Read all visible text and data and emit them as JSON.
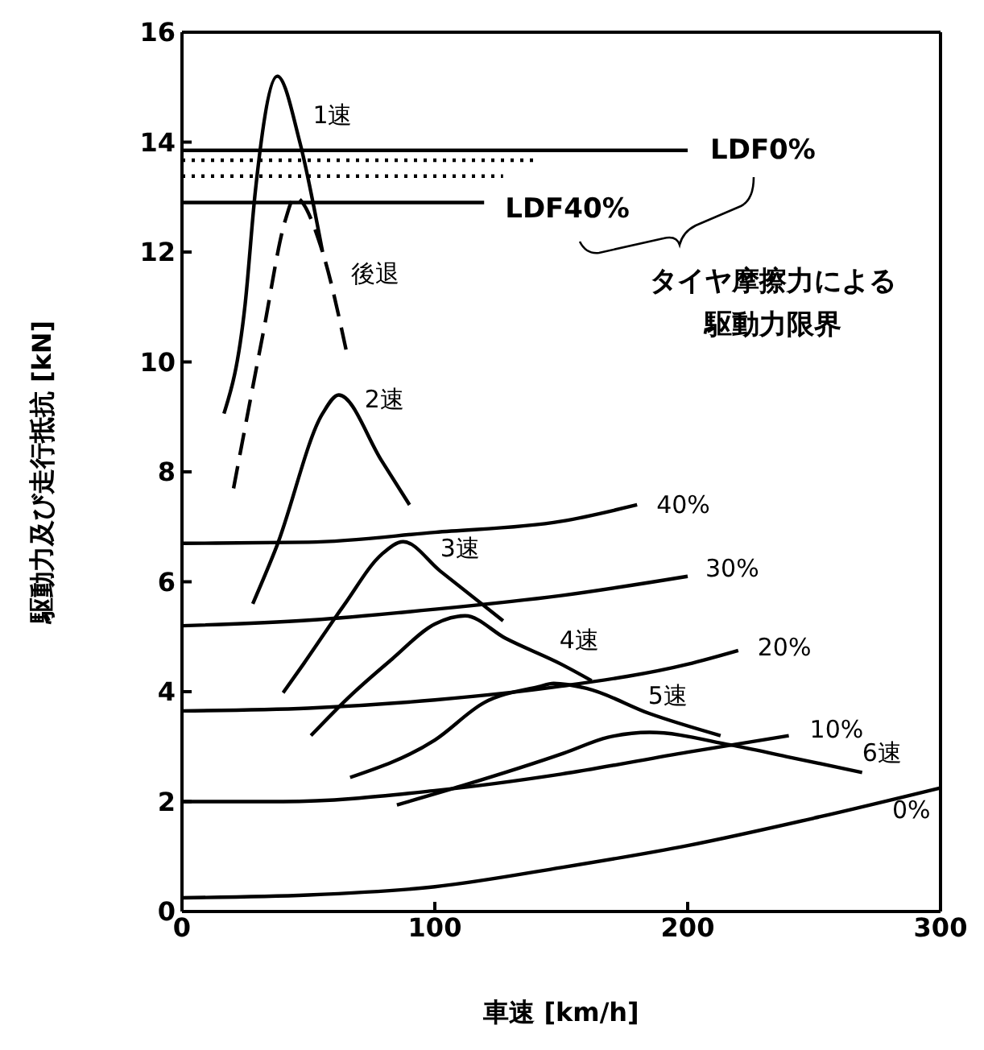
{
  "chart_data": {
    "type": "line",
    "xlabel": "車速 [km/h]",
    "ylabel": "駆動力及び走行抵抗 [kN]",
    "xlim": [
      0,
      300
    ],
    "xticks": [
      0,
      100,
      200,
      300
    ],
    "ylim": [
      0,
      16
    ],
    "yticks": [
      0,
      2,
      4,
      6,
      8,
      10,
      12,
      14,
      16
    ],
    "grid": false,
    "legend": false,
    "marker": "none",
    "series": [
      {
        "name": "0%",
        "color": "#000000",
        "x": [
          0,
          50,
          100,
          150,
          200,
          250,
          300
        ],
        "values": [
          0.25,
          0.3,
          0.45,
          0.8,
          1.2,
          1.7,
          2.25
        ]
      },
      {
        "name": "10%",
        "color": "#000000",
        "x": [
          0,
          40,
          100,
          150,
          200,
          240
        ],
        "values": [
          2.0,
          2.0,
          2.2,
          2.5,
          2.9,
          3.2
        ]
      },
      {
        "name": "20%",
        "color": "#000000",
        "x": [
          0,
          50,
          100,
          150,
          200,
          220
        ],
        "values": [
          3.65,
          3.7,
          3.85,
          4.1,
          4.5,
          4.75
        ]
      },
      {
        "name": "30%",
        "color": "#000000",
        "x": [
          0,
          50,
          100,
          150,
          200
        ],
        "values": [
          5.2,
          5.3,
          5.5,
          5.75,
          6.1
        ]
      },
      {
        "name": "40%",
        "color": "#000000",
        "x": [
          0,
          50,
          100,
          150,
          180
        ],
        "values": [
          6.7,
          6.72,
          6.9,
          7.1,
          7.4
        ]
      },
      {
        "name": "1速",
        "color": "#000000",
        "x": [
          16.6,
          25,
          29,
          37.7,
          46.6,
          55.6
        ],
        "values": [
          9.06,
          11.06,
          13.1,
          15.2,
          14.0,
          12.0
        ]
      },
      {
        "name": "後退",
        "color": "#000000",
        "line_style": "dashed",
        "x": [
          20.4,
          32,
          41,
          44.6,
          55.6,
          65
        ],
        "values": [
          7.7,
          10.5,
          12.6,
          13.0,
          12.0,
          10.2
        ]
      },
      {
        "name": "2速",
        "color": "#000000",
        "x": [
          28,
          37.5,
          55.6,
          62,
          79,
          90
        ],
        "values": [
          5.6,
          6.65,
          9.06,
          9.4,
          8.2,
          7.4
        ]
      },
      {
        "name": "3速",
        "color": "#000000",
        "x": [
          40,
          48,
          64,
          79,
          87.5,
          102,
          127
        ],
        "values": [
          3.98,
          4.5,
          5.57,
          6.5,
          6.73,
          6.2,
          5.29
        ]
      },
      {
        "name": "4速",
        "color": "#000000",
        "x": [
          51,
          66,
          83,
          100,
          112,
          128,
          150,
          162
        ],
        "values": [
          3.2,
          3.9,
          4.59,
          5.23,
          5.38,
          4.97,
          4.5,
          4.2
        ]
      },
      {
        "name": "5速",
        "color": "#000000",
        "x": [
          66.5,
          100,
          119.5,
          141,
          147,
          160,
          185,
          213
        ],
        "values": [
          2.44,
          3.12,
          3.8,
          4.09,
          4.15,
          4.06,
          3.6,
          3.2
        ]
      },
      {
        "name": "6速",
        "color": "#000000",
        "x": [
          85,
          111,
          151,
          168.5,
          185,
          217,
          239,
          269
        ],
        "values": [
          1.94,
          2.29,
          2.88,
          3.17,
          3.26,
          3.03,
          2.82,
          2.53
        ]
      },
      {
        "name": "LDF0%",
        "color": "#000000",
        "x": [
          0,
          200
        ],
        "values": [
          13.85,
          13.85
        ]
      },
      {
        "color": "#000000",
        "line_style": "dotted",
        "x": [
          0,
          139
        ],
        "values": [
          13.67,
          13.67
        ]
      },
      {
        "color": "#000000",
        "line_style": "dotted",
        "x": [
          0,
          127
        ],
        "values": [
          13.38,
          13.38
        ]
      },
      {
        "name": "LDF40%",
        "color": "#000000",
        "x": [
          0,
          119.5
        ],
        "values": [
          12.9,
          12.9
        ]
      }
    ],
    "annotations": [
      "タイヤ摩擦力による",
      "駆動力限界"
    ]
  }
}
